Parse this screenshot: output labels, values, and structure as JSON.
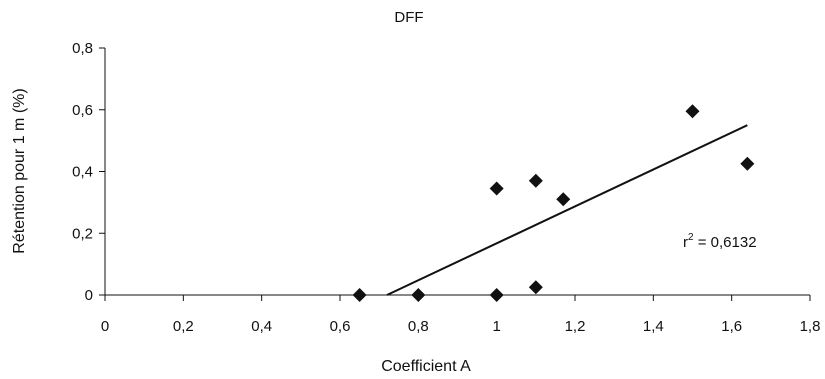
{
  "chart_data": {
    "type": "scatter",
    "title": "DFF",
    "xlabel": "Coefficient A",
    "ylabel": "Rétention pour 1 m (%)",
    "xlim": [
      0,
      1.8
    ],
    "ylim": [
      0,
      0.8
    ],
    "x_ticks": [
      "0",
      "0,2",
      "0,4",
      "0,6",
      "0,8",
      "1",
      "1,2",
      "1,4",
      "1,6",
      "1,8"
    ],
    "x_tick_values": [
      0,
      0.2,
      0.4,
      0.6,
      0.8,
      1.0,
      1.2,
      1.4,
      1.6,
      1.8
    ],
    "y_ticks": [
      "0",
      "0,2",
      "0,4",
      "0,6",
      "0,8"
    ],
    "y_tick_values": [
      0,
      0.2,
      0.4,
      0.6,
      0.8
    ],
    "grid": false,
    "marker": "diamond",
    "series": [
      {
        "points": [
          {
            "x": 0.65,
            "y": 0.0
          },
          {
            "x": 0.8,
            "y": 0.0
          },
          {
            "x": 1.0,
            "y": 0.0
          },
          {
            "x": 1.1,
            "y": 0.025
          },
          {
            "x": 1.0,
            "y": 0.345
          },
          {
            "x": 1.1,
            "y": 0.37
          },
          {
            "x": 1.17,
            "y": 0.31
          },
          {
            "x": 1.5,
            "y": 0.595
          },
          {
            "x": 1.64,
            "y": 0.425
          }
        ]
      }
    ],
    "trendline": {
      "x": [
        0.72,
        1.64
      ],
      "y": [
        0.0,
        0.55
      ]
    },
    "annotation": {
      "text_base": "r",
      "superscript": "2",
      "text_rest": " = 0,6132"
    }
  }
}
